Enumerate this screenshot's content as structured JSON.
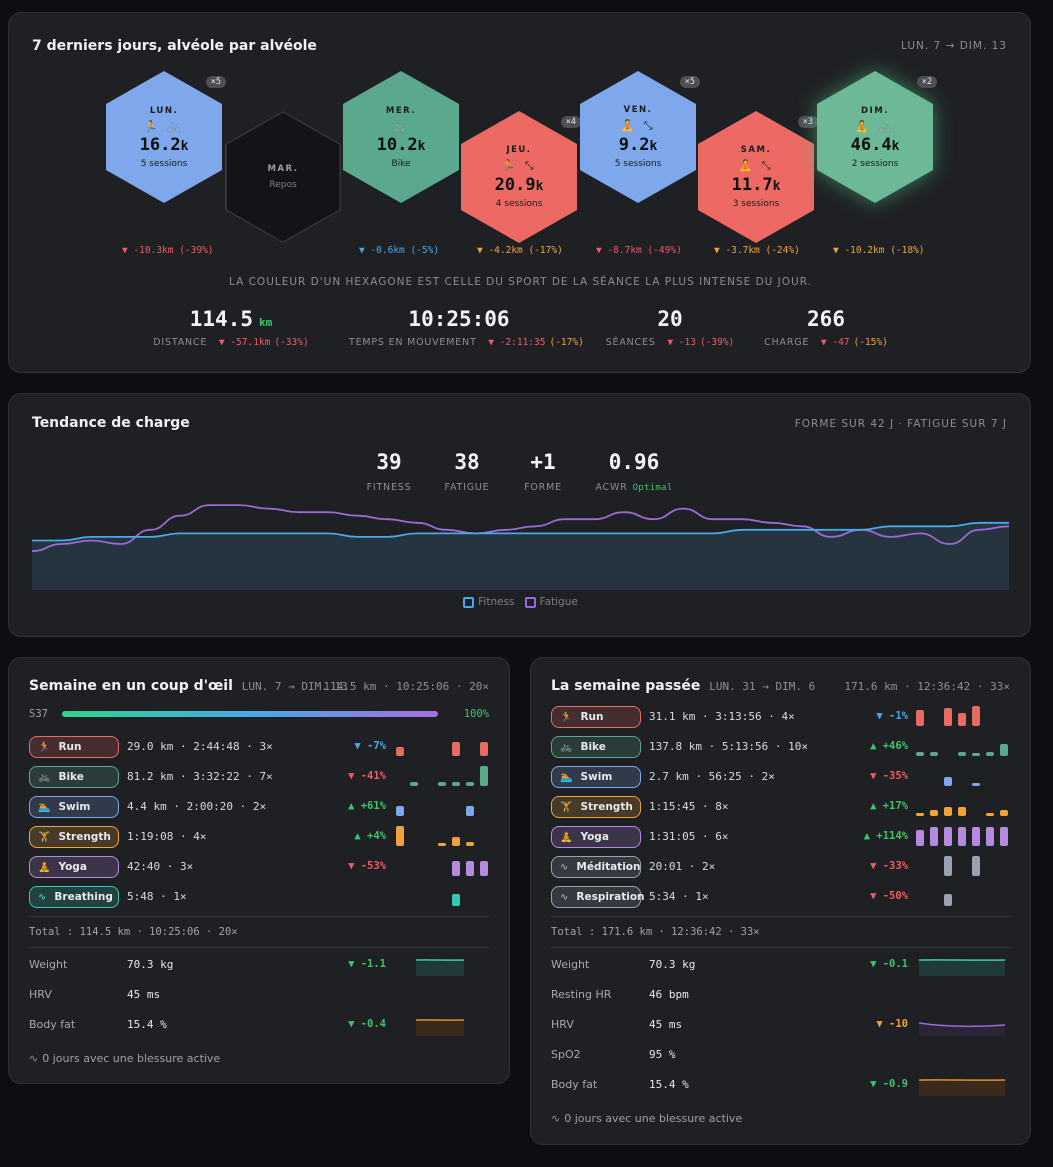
{
  "week_card": {
    "title": "7 derniers jours, alvéole par alvéole",
    "range": "LUN. 7 → DIM. 13",
    "days": [
      {
        "day": "LUN.",
        "icons": "🏃 🚲",
        "value": "16.2",
        "unit": "k",
        "sub": "5 sessions",
        "badge": "×5",
        "color": "#7fa7ec",
        "delta": "▼ -10.3km (-39%)",
        "delta_color": "#f05b66"
      },
      {
        "day": "MAR.",
        "icons": "",
        "value": "",
        "unit": "",
        "sub": "Repos",
        "badge": "",
        "color": "#131417",
        "delta": "",
        "delta_color": "#f05b66"
      },
      {
        "day": "MER.",
        "icons": "🚲",
        "value": "10.2",
        "unit": "k",
        "sub": "Bike",
        "badge": "",
        "color": "#5aa98f",
        "delta": "▼ -0.6km (-5%)",
        "delta_color": "#48a9e8"
      },
      {
        "day": "JEU.",
        "icons": "🏃 ⤡",
        "value": "20.9",
        "unit": "k",
        "sub": "4 sessions",
        "badge": "×4",
        "color": "#ec6a63",
        "delta": "▼ -4.2km (-17%)",
        "delta_color": "#f0a33a"
      },
      {
        "day": "VEN.",
        "icons": "🧘 ⤡",
        "value": "9.2",
        "unit": "k",
        "sub": "5 sessions",
        "badge": "×5",
        "color": "#7fa7ec",
        "delta": "▼ -8.7km (-49%)",
        "delta_color": "#f05b66"
      },
      {
        "day": "SAM.",
        "icons": "🧘 ⤡",
        "value": "11.7",
        "unit": "k",
        "sub": "3 sessions",
        "badge": "×3",
        "color": "#ec6a63",
        "delta": "▼ -3.7km (-24%)",
        "delta_color": "#f0a33a"
      },
      {
        "day": "DIM.",
        "icons": "🧘 🚲",
        "value": "46.4",
        "unit": "k",
        "sub": "2 sessions",
        "badge": "×2",
        "color": "#6db896",
        "delta": "▼ -10.2km (-18%)",
        "delta_color": "#f0a33a"
      }
    ],
    "caption": "LA COULEUR D'UN HEXAGONE EST CELLE DU SPORT DE LA SÉANCE LA PLUS INTENSE DU JOUR.",
    "stats": [
      {
        "value": "114.5",
        "unit": "km",
        "label": "DISTANCE",
        "delta_a": "▼ -57.1km",
        "delta_b": "(-33%)"
      },
      {
        "value": "10:25:06",
        "unit": "",
        "label": "TEMPS EN MOUVEMENT",
        "delta_a": "▼ -2:11:35",
        "delta_b": "(-17%)"
      },
      {
        "value": "20",
        "unit": "",
        "label": "SÉANCES",
        "delta_a": "▼ -13",
        "delta_b": "(-39%)"
      },
      {
        "value": "266",
        "unit": "",
        "label": "CHARGE",
        "delta_a": "▼ -47",
        "delta_b": "(-15%)"
      }
    ]
  },
  "trend_card": {
    "title": "Tendance de charge",
    "subtitle": "FORME SUR 42 J · FATIGUE SUR 7 J",
    "kpis": [
      {
        "value": "39",
        "label": "FITNESS"
      },
      {
        "value": "38",
        "label": "FATIGUE"
      },
      {
        "value": "+1",
        "label": "FORME"
      },
      {
        "value": "0.96",
        "label": "ACWR",
        "tag": "Optimal"
      }
    ],
    "legend": [
      "Fitness",
      "Fatigue"
    ],
    "colors": {
      "fitness": "#48a9e8",
      "fatigue": "#9a6ad6"
    },
    "chart_data": {
      "type": "line",
      "series": [
        {
          "name": "Fitness",
          "values": [
            34,
            34,
            35,
            35,
            35,
            36,
            36,
            36,
            36,
            36,
            36,
            35,
            35,
            36,
            36,
            36,
            36,
            36,
            36,
            36,
            36,
            36,
            36,
            36,
            37,
            37,
            37,
            37,
            37,
            38,
            38,
            38,
            39,
            39
          ]
        },
        {
          "name": "Fatigue",
          "values": [
            31,
            33,
            34,
            33,
            37,
            41,
            44,
            44,
            43,
            42,
            42,
            41,
            40,
            39,
            37,
            36,
            37,
            38,
            40,
            40,
            42,
            40,
            43,
            40,
            40,
            39,
            38,
            35,
            37,
            35,
            36,
            33,
            37,
            38
          ]
        }
      ]
    }
  },
  "left_card": {
    "title": "Semaine en un coup d'œil",
    "range": "LUN. 7 → DIM. 13",
    "summary": "114.5 km · 10:25:06 · 20×",
    "week_label": "S37",
    "progress": 1.0,
    "progress_label": "100%",
    "sports": [
      {
        "name": "Run",
        "icon": "🏃",
        "color": "#e86a63",
        "text": "29.0 km · 2:44:48 · 3×",
        "pct": "▼ -7%",
        "pct_color": "#48a9e8",
        "bars": [
          0.45,
          0,
          0,
          0,
          0.7,
          0,
          0.7
        ]
      },
      {
        "name": "Bike",
        "icon": "🚲",
        "color": "#5aa98f",
        "text": "81.2 km · 3:32:22 · 7×",
        "pct": "▼ -41%",
        "pct_color": "#f05b66",
        "bars": [
          0,
          0.18,
          0,
          0.18,
          0.18,
          0.18,
          1
        ]
      },
      {
        "name": "Swim",
        "icon": "🏊",
        "color": "#7fa7ec",
        "text": "4.4 km · 2:00:20 · 2×",
        "pct": "▲ +61%",
        "pct_color": "#3ec46d",
        "bars": [
          0.5,
          0,
          0,
          0,
          0,
          0.5,
          0
        ]
      },
      {
        "name": "Strength",
        "icon": "🏋",
        "color": "#f0a33a",
        "text": "1:19:08 · 4×",
        "pct": "▲ +4%",
        "pct_color": "#3ec46d",
        "bars": [
          1,
          0,
          0,
          0.15,
          0.45,
          0.18,
          0
        ]
      },
      {
        "name": "Yoga",
        "icon": "🧘",
        "color": "#b48be0",
        "text": "42:40 · 3×",
        "pct": "▼ -53%",
        "pct_color": "#f05b66",
        "bars": [
          0,
          0,
          0,
          0,
          0.75,
          0.75,
          0.75
        ]
      },
      {
        "name": "Breathing",
        "icon": "∿",
        "color": "#34c9b2",
        "text": "5:48 · 1×",
        "pct": "",
        "pct_color": "#3ec46d",
        "bars": [
          0,
          0,
          0,
          0,
          0.6,
          0,
          0
        ]
      }
    ],
    "total": "Total : 114.5 km · 10:25:06 · 20×",
    "metrics": [
      {
        "name": "Weight",
        "value": "70.3 kg",
        "delta": "▼ -1.1",
        "delta_color": "#3ec46d",
        "spark": "teal"
      },
      {
        "name": "HRV",
        "value": "45 ms",
        "delta": "",
        "delta_color": "#3ec46d",
        "spark": ""
      },
      {
        "name": "Body fat",
        "value": "15.4 %",
        "delta": "▼ -0.4",
        "delta_color": "#3ec46d",
        "spark": "orange"
      }
    ],
    "injury": "0 jours avec une blessure active"
  },
  "right_card": {
    "title": "La semaine passée",
    "range": "LUN. 31 → DIM. 6",
    "summary": "171.6 km · 12:36:42 · 33×",
    "sports": [
      {
        "name": "Run",
        "icon": "🏃",
        "color": "#e86a63",
        "text": "31.1 km · 3:13:56 · 4×",
        "pct": "▼ -1%",
        "pct_color": "#48a9e8",
        "bars": [
          0.8,
          0,
          0.9,
          0.65,
          1,
          0,
          0
        ]
      },
      {
        "name": "Bike",
        "icon": "🚲",
        "color": "#5aa98f",
        "text": "137.8 km · 5:13:56 · 10×",
        "pct": "▲ +46%",
        "pct_color": "#3ec46d",
        "bars": [
          0.18,
          0.18,
          0,
          0.18,
          0.1,
          0.18,
          0.6
        ]
      },
      {
        "name": "Swim",
        "icon": "🏊",
        "color": "#7fa7ec",
        "text": "2.7 km · 56:25 · 2×",
        "pct": "▼ -35%",
        "pct_color": "#f05b66",
        "bars": [
          0,
          0,
          0.45,
          0,
          0.1,
          0,
          0
        ]
      },
      {
        "name": "Strength",
        "icon": "🏋",
        "color": "#f0a33a",
        "text": "1:15:45 · 8×",
        "pct": "▲ +17%",
        "pct_color": "#3ec46d",
        "bars": [
          0.15,
          0.3,
          0.45,
          0.45,
          0,
          0.15,
          0.3
        ]
      },
      {
        "name": "Yoga",
        "icon": "🧘",
        "color": "#b48be0",
        "text": "1:31:05 · 6×",
        "pct": "▲ +114%",
        "pct_color": "#3ec46d",
        "bars": [
          0.8,
          0.95,
          0.95,
          0.95,
          0.95,
          0.95,
          0.95
        ]
      },
      {
        "name": "Méditation",
        "icon": "∿",
        "color": "#98a2b0",
        "text": "20:01 · 2×",
        "pct": "▼ -33%",
        "pct_color": "#f05b66",
        "bars": [
          0,
          0,
          1,
          0,
          1,
          0,
          0
        ]
      },
      {
        "name": "Respiration",
        "icon": "∿",
        "color": "#98a2b0",
        "text": "5:34 · 1×",
        "pct": "▼ -50%",
        "pct_color": "#f05b66",
        "bars": [
          0,
          0,
          0.6,
          0,
          0,
          0,
          0
        ]
      }
    ],
    "total": "Total : 171.6 km · 12:36:42 · 33×",
    "metrics": [
      {
        "name": "Weight",
        "value": "70.3 kg",
        "delta": "▼ -0.1",
        "delta_color": "#3ec46d",
        "spark": "teal"
      },
      {
        "name": "Resting HR",
        "value": "46 bpm",
        "delta": "",
        "delta_color": "#3ec46d",
        "spark": ""
      },
      {
        "name": "HRV",
        "value": "45 ms",
        "delta": "▼ -10",
        "delta_color": "#f0a33a",
        "spark": "purple"
      },
      {
        "name": "SpO2",
        "value": "95 %",
        "delta": "",
        "delta_color": "#3ec46d",
        "spark": ""
      },
      {
        "name": "Body fat",
        "value": "15.4 %",
        "delta": "▼ -0.9",
        "delta_color": "#3ec46d",
        "spark": "orange"
      }
    ],
    "injury": "0 jours avec une blessure active"
  }
}
